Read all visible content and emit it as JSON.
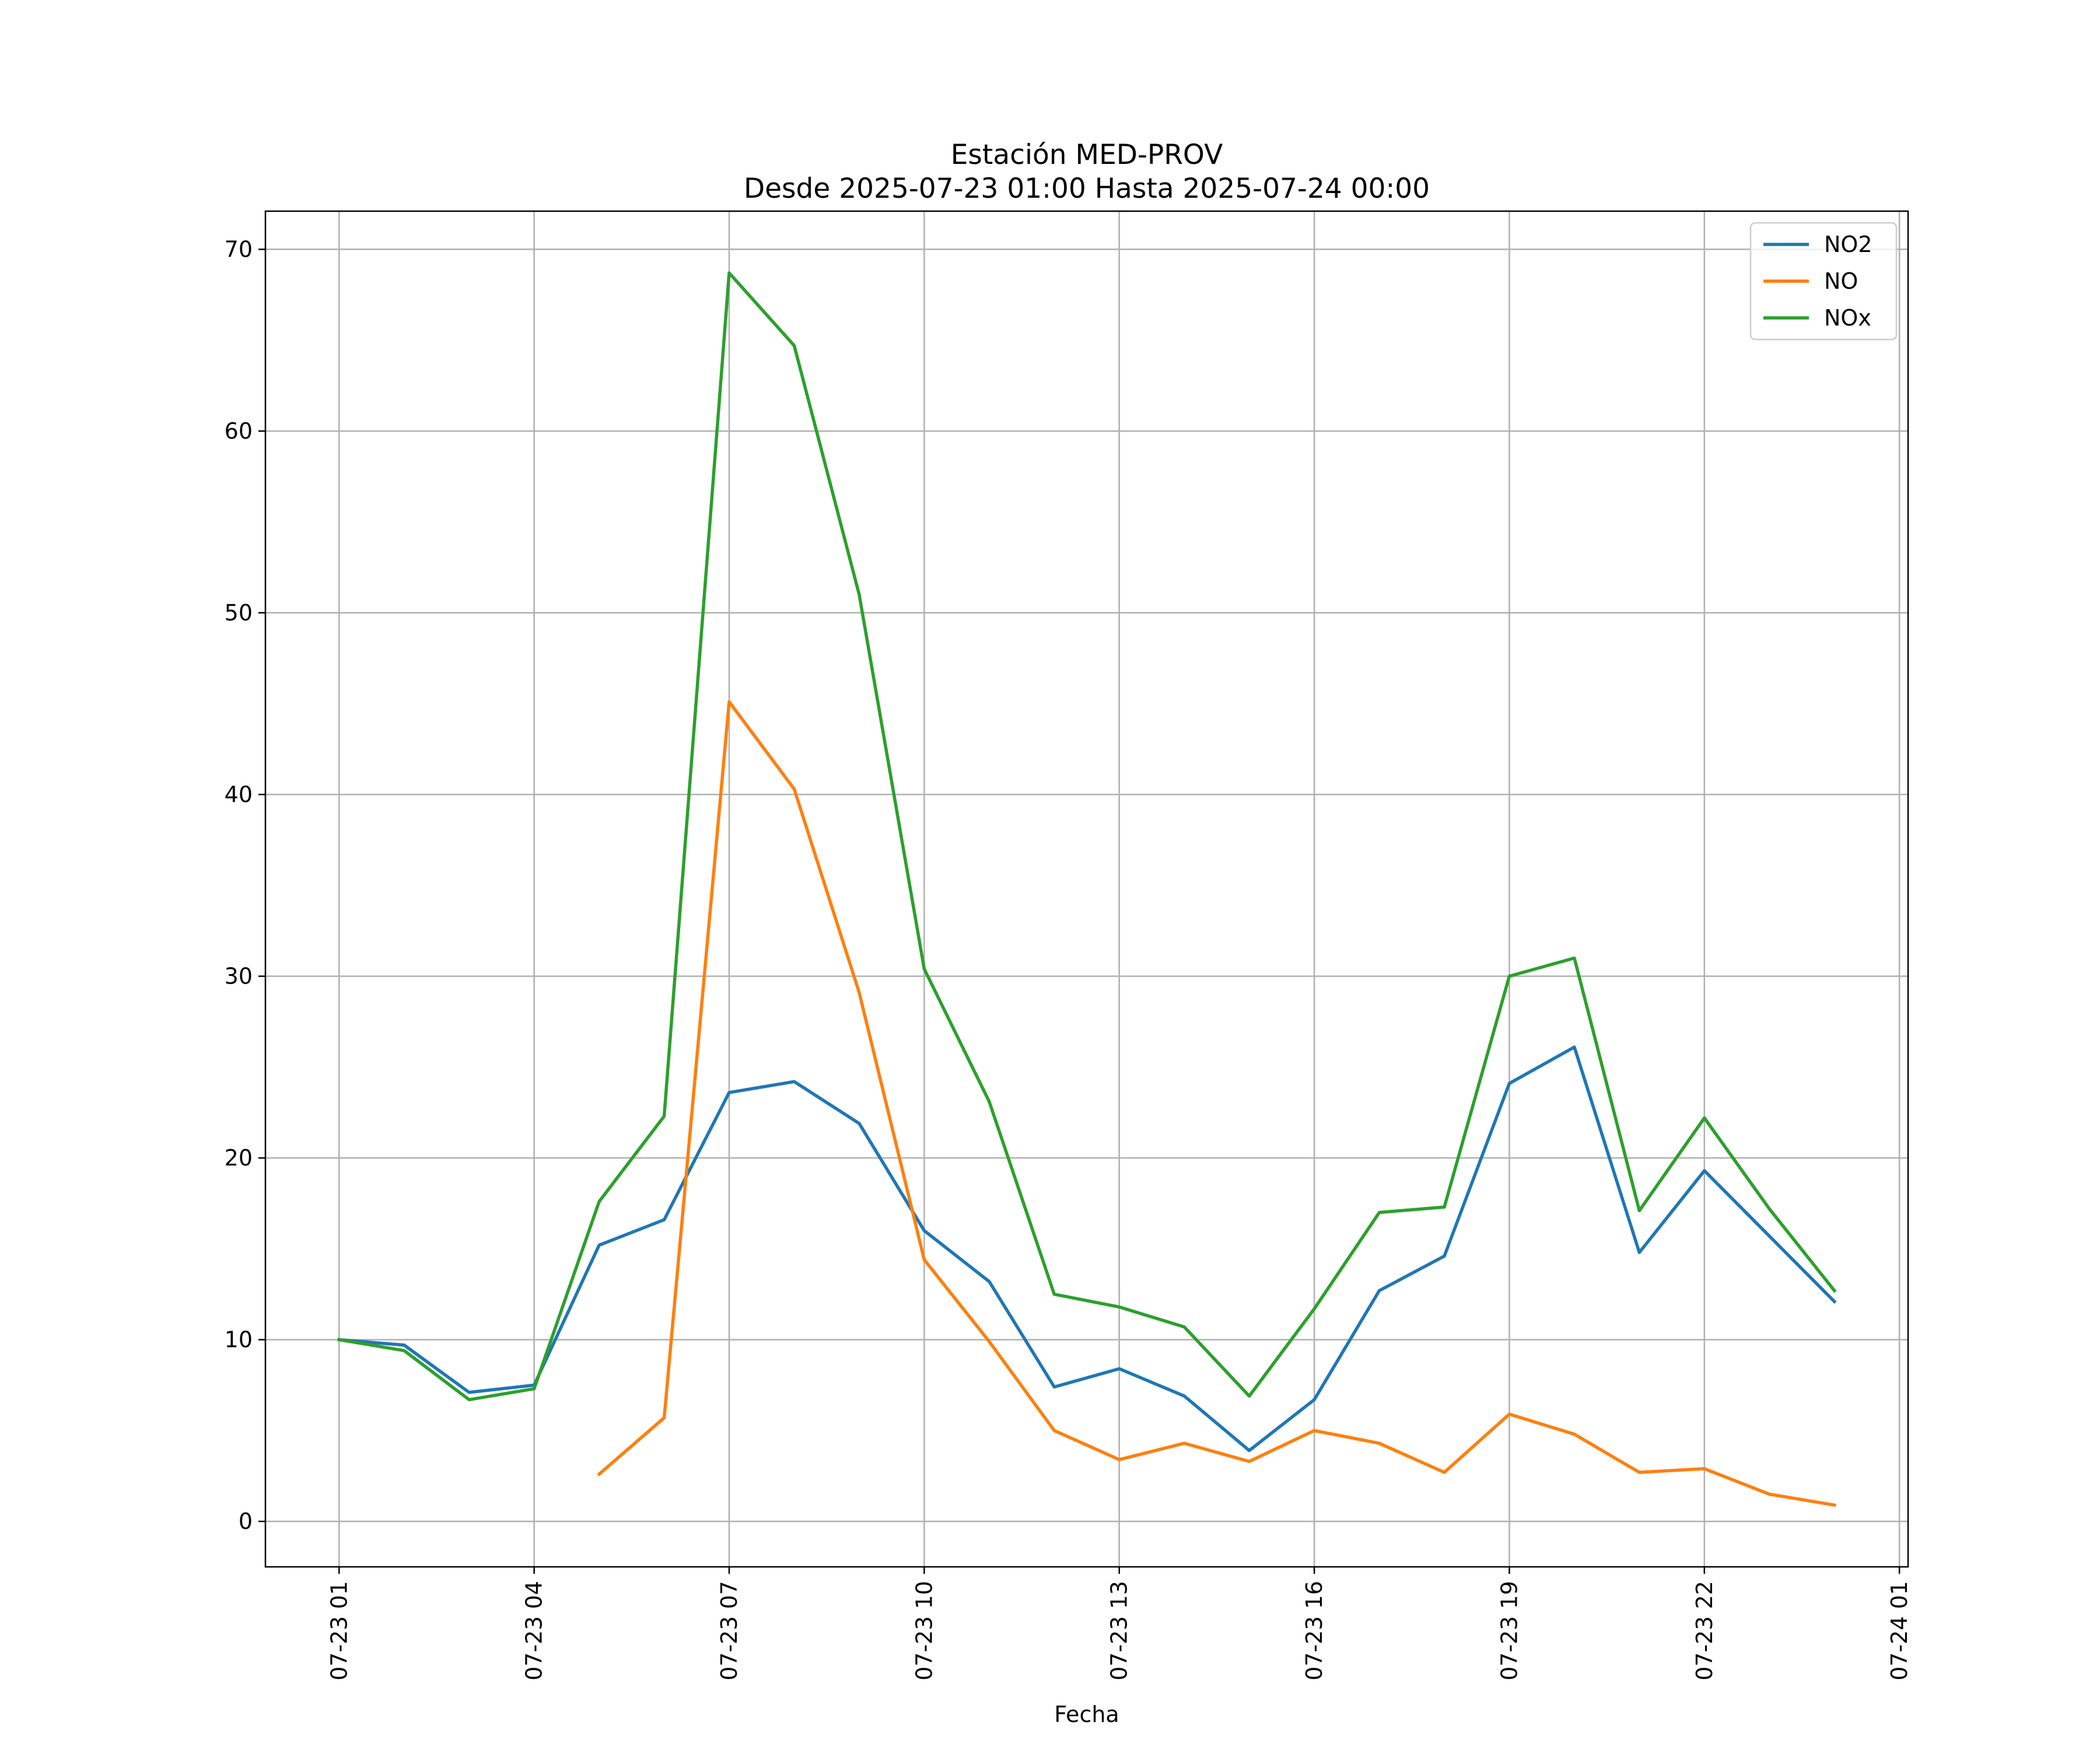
{
  "chart_data": {
    "type": "line",
    "title_line1": "Estación MED-PROV",
    "title_line2": "Desde 2025-07-23 01:00 Hasta 2025-07-24 00:00",
    "xlabel": "Fecha",
    "ylabel": "",
    "x": [
      "2025-07-23 01:00",
      "2025-07-23 02:00",
      "2025-07-23 03:00",
      "2025-07-23 04:00",
      "2025-07-23 05:00",
      "2025-07-23 06:00",
      "2025-07-23 07:00",
      "2025-07-23 08:00",
      "2025-07-23 09:00",
      "2025-07-23 10:00",
      "2025-07-23 11:00",
      "2025-07-23 12:00",
      "2025-07-23 13:00",
      "2025-07-23 14:00",
      "2025-07-23 15:00",
      "2025-07-23 16:00",
      "2025-07-23 17:00",
      "2025-07-23 18:00",
      "2025-07-23 19:00",
      "2025-07-23 20:00",
      "2025-07-23 21:00",
      "2025-07-23 22:00",
      "2025-07-23 23:00",
      "2025-07-24 00:00"
    ],
    "xlim": [
      "2025-07-22 23:52",
      "2025-07-24 01:08"
    ],
    "x_ticks": [
      "07-23 01",
      "07-23 04",
      "07-23 07",
      "07-23 10",
      "07-23 13",
      "07-23 16",
      "07-23 19",
      "07-23 22",
      "07-24 01"
    ],
    "x_tick_values": [
      "2025-07-23 01:00",
      "2025-07-23 04:00",
      "2025-07-23 07:00",
      "2025-07-23 10:00",
      "2025-07-23 13:00",
      "2025-07-23 16:00",
      "2025-07-23 19:00",
      "2025-07-23 22:00",
      "2025-07-24 01:00"
    ],
    "ylim": [
      -2.5,
      72.1
    ],
    "y_ticks": [
      0,
      10,
      20,
      30,
      40,
      50,
      60,
      70
    ],
    "grid": true,
    "legend_position": "upper right",
    "series": [
      {
        "name": "NO2",
        "color": "#1f77b4",
        "values": [
          10.0,
          9.7,
          7.1,
          7.5,
          15.2,
          16.6,
          23.6,
          24.2,
          21.9,
          16.0,
          13.2,
          7.4,
          8.4,
          6.9,
          3.9,
          6.7,
          12.7,
          14.6,
          24.1,
          26.1,
          14.8,
          19.3,
          15.7,
          12.1
        ]
      },
      {
        "name": "NO",
        "color": "#ff7f0e",
        "values": [
          null,
          null,
          null,
          null,
          2.6,
          5.7,
          45.1,
          40.3,
          29.1,
          14.4,
          9.9,
          5.0,
          3.4,
          4.3,
          3.3,
          5.0,
          4.3,
          2.7,
          5.9,
          4.8,
          2.7,
          2.9,
          1.5,
          0.9
        ]
      },
      {
        "name": "NOx",
        "color": "#2ca02c",
        "values": [
          10.0,
          9.4,
          6.7,
          7.3,
          17.6,
          22.3,
          68.7,
          64.7,
          51.0,
          30.4,
          23.1,
          12.5,
          11.8,
          10.7,
          6.9,
          11.7,
          17.0,
          17.3,
          30.0,
          31.0,
          17.1,
          22.2,
          17.2,
          12.7
        ]
      }
    ]
  }
}
